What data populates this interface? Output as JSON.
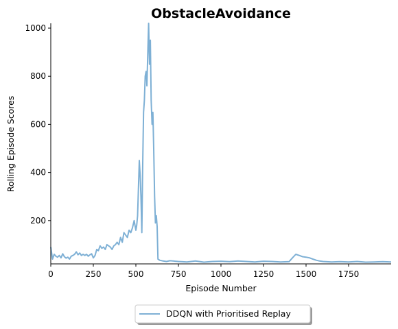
{
  "chart_data": {
    "type": "line",
    "title": "ObstacleAvoidance",
    "xlabel": "Episode Number",
    "ylabel": "Rolling Episode Scores",
    "xlim": [
      0,
      2000
    ],
    "ylim": [
      20,
      1020
    ],
    "xticks": [
      0,
      250,
      500,
      750,
      1000,
      1250,
      1500,
      1750
    ],
    "yticks": [
      200,
      400,
      600,
      800,
      1000
    ],
    "grid": false,
    "legend_position": "bottom-center",
    "series": [
      {
        "name": "DDQN with Prioritised Replay",
        "color": "#7eb0d5",
        "x": [
          0,
          10,
          20,
          30,
          40,
          50,
          60,
          70,
          80,
          90,
          100,
          110,
          120,
          130,
          140,
          150,
          160,
          170,
          180,
          190,
          200,
          210,
          220,
          230,
          240,
          250,
          260,
          270,
          280,
          290,
          300,
          310,
          320,
          330,
          340,
          350,
          360,
          370,
          380,
          390,
          400,
          410,
          420,
          430,
          440,
          450,
          460,
          470,
          480,
          490,
          500,
          505,
          510,
          515,
          520,
          525,
          530,
          535,
          540,
          545,
          550,
          555,
          560,
          565,
          570,
          575,
          580,
          585,
          590,
          595,
          600,
          605,
          610,
          615,
          620,
          625,
          630,
          640,
          660,
          680,
          700,
          750,
          800,
          850,
          900,
          950,
          1000,
          1050,
          1100,
          1150,
          1200,
          1250,
          1300,
          1350,
          1400,
          1420,
          1440,
          1460,
          1480,
          1500,
          1520,
          1540,
          1560,
          1580,
          1600,
          1650,
          1700,
          1750,
          1800,
          1850,
          1900,
          1950,
          2000
        ],
        "y": [
          90,
          40,
          60,
          52,
          48,
          55,
          45,
          62,
          50,
          44,
          48,
          40,
          52,
          55,
          60,
          70,
          58,
          65,
          55,
          60,
          55,
          60,
          52,
          58,
          62,
          45,
          55,
          80,
          75,
          95,
          85,
          90,
          80,
          100,
          95,
          90,
          80,
          95,
          100,
          110,
          100,
          130,
          110,
          150,
          140,
          130,
          160,
          150,
          170,
          200,
          160,
          180,
          220,
          330,
          450,
          390,
          300,
          150,
          420,
          650,
          700,
          800,
          820,
          760,
          900,
          1020,
          850,
          950,
          700,
          600,
          650,
          500,
          300,
          190,
          220,
          175,
          40,
          35,
          32,
          30,
          33,
          30,
          28,
          32,
          27,
          30,
          31,
          29,
          32,
          30,
          28,
          31,
          30,
          28,
          29,
          45,
          60,
          55,
          50,
          48,
          45,
          40,
          35,
          32,
          30,
          28,
          29,
          28,
          30,
          27,
          28,
          29,
          28
        ]
      }
    ]
  }
}
